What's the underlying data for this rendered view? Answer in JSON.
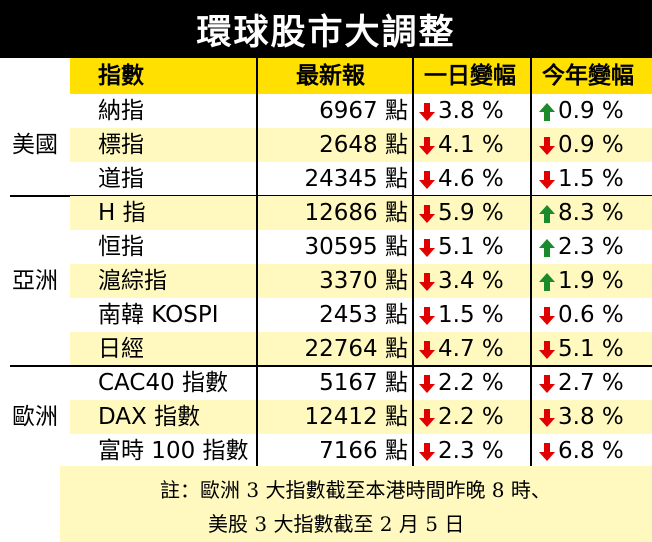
{
  "title": "環球股市大調整",
  "headers": {
    "index": "指數",
    "latest": "最新報",
    "day": "一日變幅",
    "year": "今年變幅"
  },
  "colors": {
    "up": "#1a8a2a",
    "down": "#e00000",
    "header": "#ffe000",
    "band": "#fff9c0"
  },
  "regions": [
    {
      "name": "美國",
      "rows": [
        {
          "name": "納指",
          "value": "6967 點",
          "day": {
            "dir": "down",
            "text": "3.8 %"
          },
          "year": {
            "dir": "up",
            "text": "0.9 %"
          }
        },
        {
          "name": "標指",
          "value": "2648 點",
          "day": {
            "dir": "down",
            "text": "4.1 %"
          },
          "year": {
            "dir": "down",
            "text": "0.9 %"
          }
        },
        {
          "name": "道指",
          "value": "24345 點",
          "day": {
            "dir": "down",
            "text": "4.6 %"
          },
          "year": {
            "dir": "down",
            "text": "1.5 %"
          }
        }
      ]
    },
    {
      "name": "亞洲",
      "rows": [
        {
          "name": "H 指",
          "value": "12686 點",
          "day": {
            "dir": "down",
            "text": "5.9 %"
          },
          "year": {
            "dir": "up",
            "text": "8.3 %"
          }
        },
        {
          "name": "恒指",
          "value": "30595 點",
          "day": {
            "dir": "down",
            "text": "5.1 %"
          },
          "year": {
            "dir": "up",
            "text": "2.3 %"
          }
        },
        {
          "name": "滬綜指",
          "value": "3370 點",
          "day": {
            "dir": "down",
            "text": "3.4 %"
          },
          "year": {
            "dir": "up",
            "text": "1.9 %"
          }
        },
        {
          "name": "南韓 KOSPI",
          "value": "2453 點",
          "day": {
            "dir": "down",
            "text": "1.5 %"
          },
          "year": {
            "dir": "down",
            "text": "0.6 %"
          }
        },
        {
          "name": "日經",
          "value": "22764 點",
          "day": {
            "dir": "down",
            "text": "4.7 %"
          },
          "year": {
            "dir": "down",
            "text": "5.1 %"
          }
        }
      ]
    },
    {
      "name": "歐洲",
      "rows": [
        {
          "name": "CAC40 指數",
          "value": "5167 點",
          "day": {
            "dir": "down",
            "text": "2.2 %"
          },
          "year": {
            "dir": "down",
            "text": "2.7 %"
          }
        },
        {
          "name": "DAX 指數",
          "value": "12412 點",
          "day": {
            "dir": "down",
            "text": "2.2 %"
          },
          "year": {
            "dir": "down",
            "text": "3.8 %"
          }
        },
        {
          "name": "富時 100 指數",
          "value": "7166 點",
          "day": {
            "dir": "down",
            "text": "2.3 %"
          },
          "year": {
            "dir": "down",
            "text": "6.8 %"
          }
        }
      ]
    }
  ],
  "note": {
    "line1": "註：歐洲 3 大指數截至本港時間昨晚 8 時、",
    "line2": "美股 3 大指數截至 2 月 5 日"
  }
}
